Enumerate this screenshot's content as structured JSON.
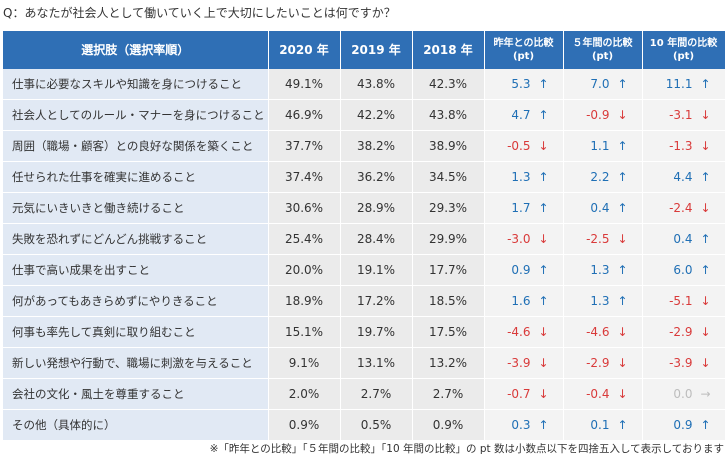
{
  "question": "Q：あなたが社会人として働いていく上で大切にしたいことは何ですか？",
  "headers": {
    "label": "選択肢（選択率順）",
    "y2020": "2020 年",
    "y2019": "2019 年",
    "y2018": "2018 年",
    "d1_line1": "昨年との比較",
    "d5_line1": "５年間の比較",
    "d10_line1": "10 年間の比較",
    "unit": "(pt)"
  },
  "colors": {
    "up": "#1f6fb5",
    "down": "#d93a3a",
    "flat": "#bdbdbd",
    "header": "#2f6fb5"
  },
  "rows": [
    {
      "label": "仕事に必要なスキルや知識を身につけること",
      "y2020": "49.1%",
      "y2019": "43.8%",
      "y2018": "42.3%",
      "d1": "5.3",
      "d1_dir": "up",
      "d5": "7.0",
      "d5_dir": "up",
      "d10": "11.1",
      "d10_dir": "up"
    },
    {
      "label": "社会人としてのルール・マナーを身につけること",
      "y2020": "46.9%",
      "y2019": "42.2%",
      "y2018": "43.8%",
      "d1": "4.7",
      "d1_dir": "up",
      "d5": "-0.9",
      "d5_dir": "down",
      "d10": "-3.1",
      "d10_dir": "down"
    },
    {
      "label": "周囲（職場・顧客）との良好な関係を築くこと",
      "y2020": "37.7%",
      "y2019": "38.2%",
      "y2018": "38.9%",
      "d1": "-0.5",
      "d1_dir": "down",
      "d5": "1.1",
      "d5_dir": "up",
      "d10": "-1.3",
      "d10_dir": "down"
    },
    {
      "label": "任せられた仕事を確実に進めること",
      "y2020": "37.4%",
      "y2019": "36.2%",
      "y2018": "34.5%",
      "d1": "1.3",
      "d1_dir": "up",
      "d5": "2.2",
      "d5_dir": "up",
      "d10": "4.4",
      "d10_dir": "up"
    },
    {
      "label": "元気にいきいきと働き続けること",
      "y2020": "30.6%",
      "y2019": "28.9%",
      "y2018": "29.3%",
      "d1": "1.7",
      "d1_dir": "up",
      "d5": "0.4",
      "d5_dir": "up",
      "d10": "-2.4",
      "d10_dir": "down"
    },
    {
      "label": "失敗を恐れずにどんどん挑戦すること",
      "y2020": "25.4%",
      "y2019": "28.4%",
      "y2018": "29.9%",
      "d1": "-3.0",
      "d1_dir": "down",
      "d5": "-2.5",
      "d5_dir": "down",
      "d10": "0.4",
      "d10_dir": "up"
    },
    {
      "label": "仕事で高い成果を出すこと",
      "y2020": "20.0%",
      "y2019": "19.1%",
      "y2018": "17.7%",
      "d1": "0.9",
      "d1_dir": "up",
      "d5": "1.3",
      "d5_dir": "up",
      "d10": "6.0",
      "d10_dir": "up"
    },
    {
      "label": "何があってもあきらめずにやりきること",
      "y2020": "18.9%",
      "y2019": "17.2%",
      "y2018": "18.5%",
      "d1": "1.6",
      "d1_dir": "up",
      "d5": "1.3",
      "d5_dir": "up",
      "d10": "-5.1",
      "d10_dir": "down"
    },
    {
      "label": "何事も率先して真剣に取り組むこと",
      "y2020": "15.1%",
      "y2019": "19.7%",
      "y2018": "17.5%",
      "d1": "-4.6",
      "d1_dir": "down",
      "d5": "-4.6",
      "d5_dir": "down",
      "d10": "-2.9",
      "d10_dir": "down"
    },
    {
      "label": "新しい発想や行動で、職場に刺激を与えること",
      "y2020": "9.1%",
      "y2019": "13.1%",
      "y2018": "13.2%",
      "d1": "-3.9",
      "d1_dir": "down",
      "d5": "-2.9",
      "d5_dir": "down",
      "d10": "-3.9",
      "d10_dir": "down"
    },
    {
      "label": "会社の文化・風土を尊重すること",
      "y2020": "2.0%",
      "y2019": "2.7%",
      "y2018": "2.7%",
      "d1": "-0.7",
      "d1_dir": "down",
      "d5": "-0.4",
      "d5_dir": "down",
      "d10": "0.0",
      "d10_dir": "flat"
    },
    {
      "label": "その他（具体的に）",
      "y2020": "0.9%",
      "y2019": "0.5%",
      "y2018": "0.9%",
      "d1": "0.3",
      "d1_dir": "up",
      "d5": "0.1",
      "d5_dir": "up",
      "d10": "0.9",
      "d10_dir": "up"
    }
  ],
  "footnote": "※「昨年との比較」「５年間の比較」「10 年間の比較」の pt 数は小数点以下を四捨五入して表示しております"
}
